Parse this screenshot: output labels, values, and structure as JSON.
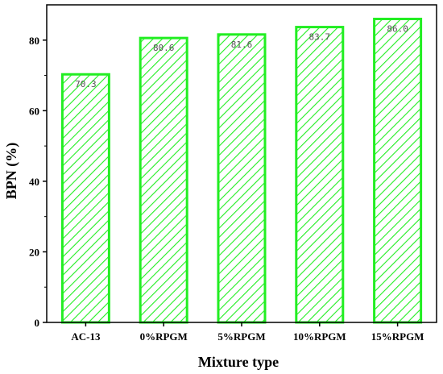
{
  "chart_data": {
    "type": "bar",
    "title": "",
    "xlabel": "Mixture type",
    "ylabel": "BPN (%)",
    "categories": [
      "AC-13",
      "0%RPGM",
      "5%RPGM",
      "10%RPGM",
      "15%RPGM"
    ],
    "values": [
      70.3,
      80.6,
      81.6,
      83.7,
      86.0
    ],
    "data_labels": [
      "70.3",
      "80.6",
      "81.6",
      "83.7",
      "86.0"
    ],
    "ylim": [
      0,
      90
    ],
    "yticks": [
      0,
      20,
      40,
      60,
      80
    ],
    "ytick_labels": [
      "0",
      "20",
      "40",
      "60",
      "80"
    ],
    "grid": false,
    "legend": "none",
    "bar_style": "diagonal-hatch",
    "colors": {
      "bar_edge": "#22ee22",
      "bar_hatch": "#22ee22",
      "bar_fill": "#ffffff",
      "axis": "#000000"
    }
  }
}
